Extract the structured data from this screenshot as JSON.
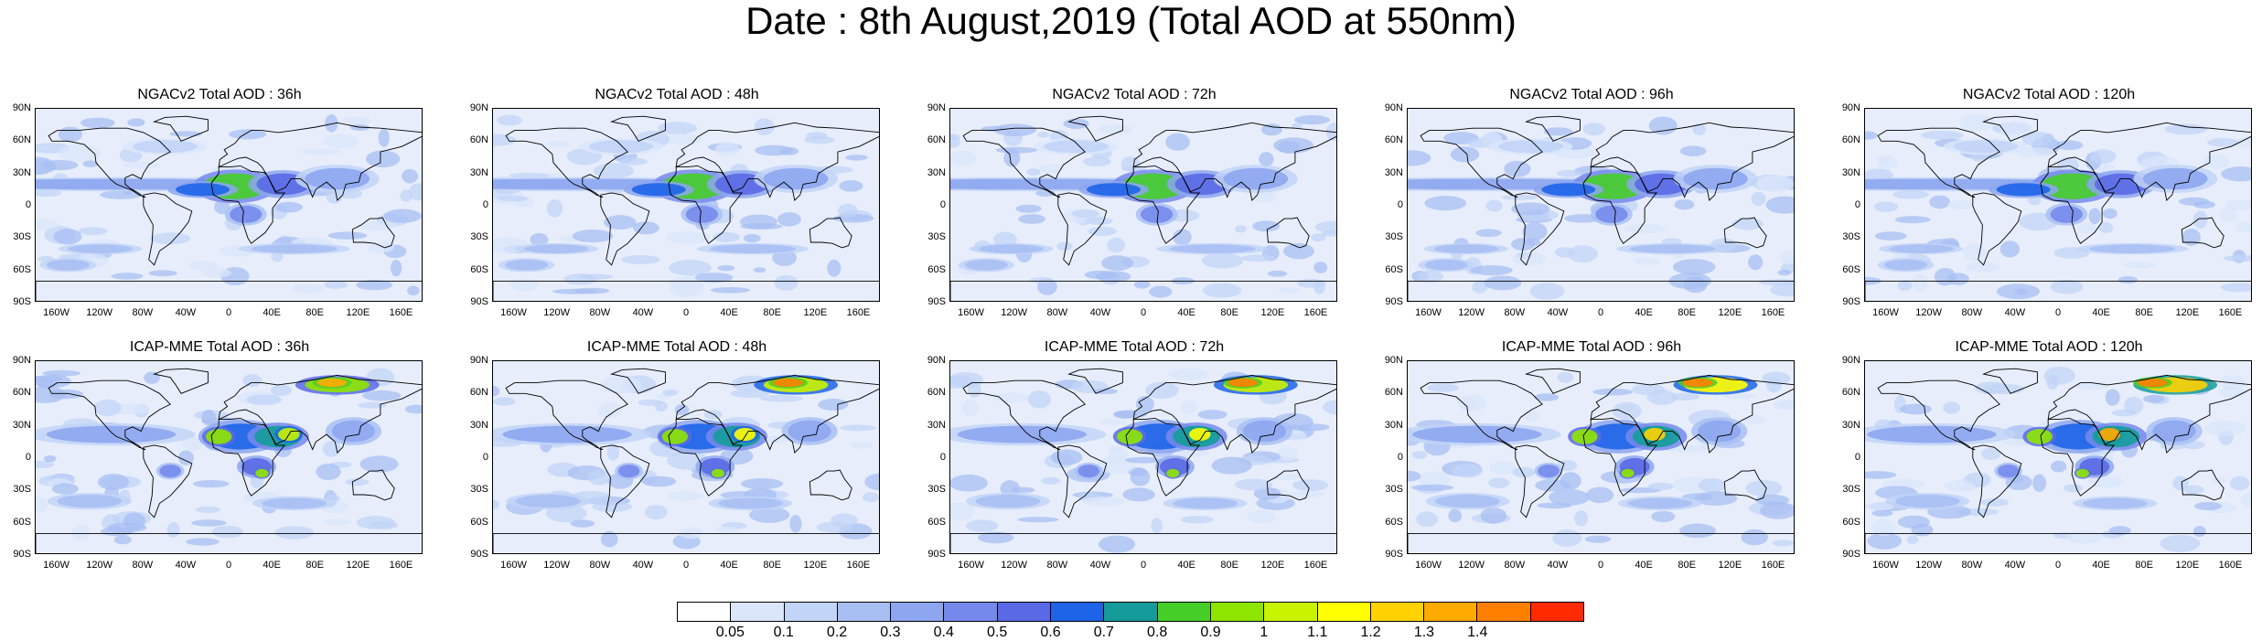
{
  "title": "Date : 8th August,2019 (Total AOD at 550nm)",
  "axes": {
    "lat_ticks": [
      "90N",
      "60N",
      "30N",
      "0",
      "30S",
      "60S",
      "90S"
    ],
    "lon_ticks": [
      "160W",
      "120W",
      "80W",
      "40W",
      "0",
      "40E",
      "80E",
      "120E",
      "160E"
    ]
  },
  "panels": [
    {
      "title": "NGACv2 Total AOD : 36h",
      "model": "NGACv2",
      "lead_hours": 36
    },
    {
      "title": "NGACv2 Total AOD : 48h",
      "model": "NGACv2",
      "lead_hours": 48
    },
    {
      "title": "NGACv2 Total AOD : 72h",
      "model": "NGACv2",
      "lead_hours": 72
    },
    {
      "title": "NGACv2 Total AOD : 96h",
      "model": "NGACv2",
      "lead_hours": 96
    },
    {
      "title": "NGACv2 Total AOD : 120h",
      "model": "NGACv2",
      "lead_hours": 120
    },
    {
      "title": "ICAP-MME Total AOD : 36h",
      "model": "ICAP-MME",
      "lead_hours": 36
    },
    {
      "title": "ICAP-MME Total AOD : 48h",
      "model": "ICAP-MME",
      "lead_hours": 48
    },
    {
      "title": "ICAP-MME Total AOD : 72h",
      "model": "ICAP-MME",
      "lead_hours": 72
    },
    {
      "title": "ICAP-MME Total AOD : 96h",
      "model": "ICAP-MME",
      "lead_hours": 96
    },
    {
      "title": "ICAP-MME Total AOD : 120h",
      "model": "ICAP-MME",
      "lead_hours": 120
    }
  ],
  "colorbar": {
    "labels": [
      "0.05",
      "0.1",
      "0.2",
      "0.3",
      "0.4",
      "0.5",
      "0.6",
      "0.7",
      "0.8",
      "0.9",
      "1",
      "1.1",
      "1.2",
      "1.3",
      "1.4"
    ],
    "colors": [
      "#ffffff",
      "#dbe6fb",
      "#c2d4f7",
      "#a8bff3",
      "#8da6ef",
      "#7589ec",
      "#5a6ae6",
      "#1d64e8",
      "#159c9a",
      "#46ce28",
      "#8ee600",
      "#c8f400",
      "#ffff00",
      "#ffd200",
      "#ffaa00",
      "#ff7f00",
      "#ff2a00"
    ]
  },
  "colors": {
    "ocean_base": "#e7edfb",
    "coast": "#000000"
  }
}
